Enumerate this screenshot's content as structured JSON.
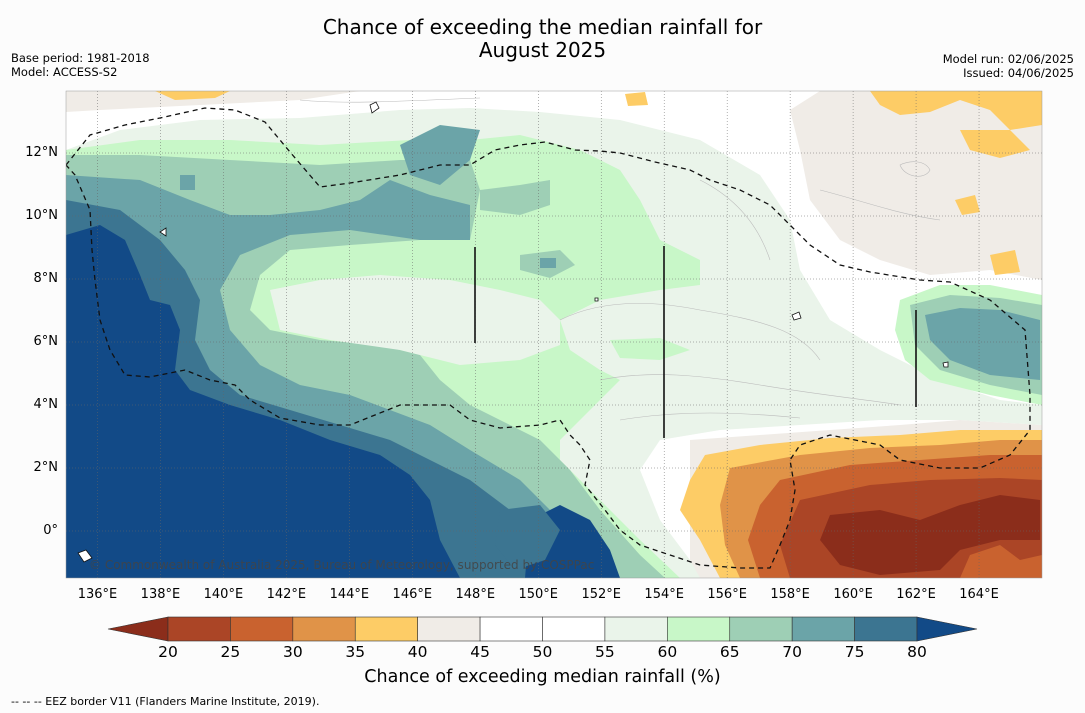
{
  "title_line1": "Chance of exceeding the median rainfall for",
  "title_line2": "August 2025",
  "base_period": "Base period: 1981-2018",
  "model": "Model: ACCESS-S2",
  "model_run": "Model run: 02/06/2025",
  "issued": "Issued: 04/06/2025",
  "credit": "© Commonwealth of Australia 2025, Bureau of Meteorology, supported by COSPPac",
  "footnote": "--  --  -- EEZ border V11 (Flanders Marine Institute, 2019).",
  "map": {
    "lon_range": [
      135,
      166
    ],
    "lat_range": [
      -1.5,
      14
    ],
    "x_ticks": [
      "136°E",
      "138°E",
      "140°E",
      "142°E",
      "144°E",
      "146°E",
      "148°E",
      "150°E",
      "152°E",
      "154°E",
      "156°E",
      "158°E",
      "160°E",
      "162°E",
      "164°E"
    ],
    "y_ticks": [
      "12°N",
      "10°N",
      "8°N",
      "6°N",
      "4°N",
      "2°N",
      "0°"
    ]
  },
  "colorbar": {
    "title": "Chance of exceeding median rainfall (%)",
    "labels": [
      "20",
      "25",
      "30",
      "35",
      "40",
      "45",
      "50",
      "55",
      "60",
      "65",
      "70",
      "75",
      "80"
    ],
    "colors": [
      "#8b2d1b",
      "#ab4526",
      "#c9622f",
      "#e09348",
      "#fdcc66",
      "#f0ece7",
      "#ffffff",
      "#ffffff",
      "#eaf4ea",
      "#c8f7c8",
      "#9ecfb5",
      "#6ba4a8",
      "#3c7591",
      "#124a87"
    ]
  }
}
